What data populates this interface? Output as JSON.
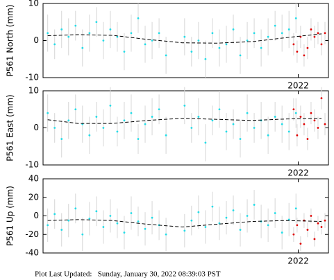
{
  "chart_data": [
    {
      "type": "scatter",
      "ylabel": "P561 North (mm)",
      "xlim": [
        2020.9,
        2022.13
      ],
      "xticks": [
        2022
      ],
      "ylim": [
        -10,
        10
      ],
      "yticks": [
        -10,
        0,
        10
      ],
      "series": [
        {
          "type": "scatter",
          "color": "#22dde8",
          "x": [
            2020.92,
            2020.95,
            2020.98,
            2021.01,
            2021.04,
            2021.07,
            2021.1,
            2021.13,
            2021.16,
            2021.19,
            2021.22,
            2021.25,
            2021.28,
            2021.31,
            2021.34,
            2021.37,
            2021.4,
            2021.43,
            2021.51,
            2021.54,
            2021.57,
            2021.6,
            2021.63,
            2021.66,
            2021.69,
            2021.72,
            2021.75,
            2021.78,
            2021.81,
            2021.84,
            2021.87,
            2021.9,
            2021.93,
            2021.96,
            2021.99
          ],
          "values": [
            2,
            -1,
            3,
            1,
            4,
            -2,
            2,
            5,
            0,
            3,
            1,
            -3,
            2,
            6,
            -1,
            0,
            2,
            -4,
            1,
            -3,
            0,
            -5,
            2,
            -2,
            -1,
            3,
            -4,
            0,
            2,
            -2,
            1,
            4,
            2,
            3,
            6
          ],
          "errors": [
            5,
            4,
            5,
            5,
            4,
            5,
            5,
            4,
            5,
            5,
            4,
            5,
            5,
            4,
            5,
            5,
            4,
            5,
            5,
            4,
            5,
            5,
            4,
            5,
            5,
            4,
            5,
            5,
            4,
            5,
            5,
            4,
            5,
            5,
            4
          ]
        },
        {
          "type": "scatter",
          "color": "#e00000",
          "x": [
            2021.98,
            2021.995,
            2022.01,
            2022.025,
            2022.04,
            2022.055,
            2022.07,
            2022.085,
            2022.1,
            2022.115
          ],
          "values": [
            -1,
            -3,
            1,
            -4,
            -2,
            3,
            1,
            2,
            -1,
            2
          ],
          "errors": [
            3,
            3,
            3,
            3,
            3,
            3,
            3,
            3,
            3,
            3
          ]
        },
        {
          "type": "line",
          "color": "#000000",
          "style": "dashed",
          "x": [
            2020.92,
            2021.05,
            2021.2,
            2021.35,
            2021.5,
            2021.65,
            2021.8,
            2021.95,
            2022.1
          ],
          "values": [
            1.3,
            1.6,
            1.4,
            0.3,
            -0.6,
            -0.7,
            -0.3,
            0.8,
            1.8
          ]
        }
      ]
    },
    {
      "type": "scatter",
      "ylabel": "P561 East (mm)",
      "xlim": [
        2020.9,
        2022.13
      ],
      "xticks": [
        2022
      ],
      "ylim": [
        -10,
        10
      ],
      "yticks": [
        -10,
        0,
        10
      ],
      "series": [
        {
          "type": "scatter",
          "color": "#22dde8",
          "x": [
            2020.92,
            2020.95,
            2020.98,
            2021.01,
            2021.04,
            2021.07,
            2021.1,
            2021.13,
            2021.16,
            2021.19,
            2021.22,
            2021.25,
            2021.28,
            2021.31,
            2021.34,
            2021.37,
            2021.4,
            2021.43,
            2021.51,
            2021.54,
            2021.57,
            2021.6,
            2021.63,
            2021.66,
            2021.69,
            2021.72,
            2021.75,
            2021.78,
            2021.81,
            2021.84,
            2021.87,
            2021.9,
            2021.93,
            2021.96,
            2021.99
          ],
          "values": [
            4,
            0,
            -3,
            2,
            5,
            1,
            -2,
            3,
            0,
            6,
            -1,
            2,
            4,
            -3,
            1,
            3,
            5,
            -2,
            6,
            0,
            3,
            -4,
            2,
            5,
            -1,
            1,
            -3,
            4,
            0,
            2,
            -2,
            3,
            1,
            -1,
            4
          ],
          "errors": [
            5,
            4,
            5,
            5,
            4,
            5,
            5,
            4,
            5,
            5,
            4,
            5,
            5,
            4,
            5,
            5,
            4,
            5,
            5,
            4,
            5,
            5,
            4,
            5,
            5,
            4,
            5,
            5,
            4,
            5,
            5,
            4,
            5,
            5,
            4
          ]
        },
        {
          "type": "scatter",
          "color": "#e00000",
          "x": [
            2021.98,
            2021.995,
            2022.01,
            2022.025,
            2022.04,
            2022.055,
            2022.07,
            2022.085,
            2022.1,
            2022.115
          ],
          "values": [
            5,
            -2,
            3,
            1,
            -3,
            4,
            2,
            0,
            8,
            1
          ],
          "errors": [
            3,
            3,
            3,
            3,
            3,
            3,
            3,
            3,
            3,
            3
          ]
        },
        {
          "type": "line",
          "color": "#000000",
          "style": "dashed",
          "x": [
            2020.92,
            2021.05,
            2021.2,
            2021.35,
            2021.5,
            2021.65,
            2021.8,
            2021.95,
            2022.1
          ],
          "values": [
            2.2,
            1.2,
            1.2,
            2.0,
            2.6,
            2.3,
            2.0,
            2.4,
            2.6
          ]
        }
      ]
    },
    {
      "type": "scatter",
      "ylabel": "P561 Up (mm)",
      "xlim": [
        2020.9,
        2022.13
      ],
      "xticks": [
        2022
      ],
      "ylim": [
        -40,
        40
      ],
      "yticks": [
        -40,
        -20,
        0,
        20,
        40
      ],
      "series": [
        {
          "type": "scatter",
          "color": "#22dde8",
          "x": [
            2020.92,
            2020.95,
            2020.98,
            2021.01,
            2021.04,
            2021.07,
            2021.1,
            2021.13,
            2021.16,
            2021.19,
            2021.22,
            2021.25,
            2021.28,
            2021.31,
            2021.34,
            2021.37,
            2021.4,
            2021.43,
            2021.51,
            2021.54,
            2021.57,
            2021.6,
            2021.63,
            2021.66,
            2021.69,
            2021.72,
            2021.75,
            2021.78,
            2021.81,
            2021.84,
            2021.87,
            2021.9,
            2021.93,
            2021.96,
            2021.99
          ],
          "values": [
            -10,
            2,
            -15,
            -5,
            8,
            -20,
            -3,
            5,
            -12,
            0,
            -8,
            -18,
            3,
            -6,
            -14,
            -2,
            -10,
            -20,
            -16,
            -5,
            4,
            -12,
            10,
            -8,
            -2,
            6,
            -15,
            0,
            12,
            -6,
            -10,
            3,
            -18,
            -4,
            8
          ],
          "errors": [
            18,
            16,
            18,
            18,
            16,
            18,
            18,
            16,
            18,
            18,
            16,
            18,
            18,
            16,
            18,
            18,
            16,
            18,
            18,
            16,
            18,
            18,
            16,
            18,
            18,
            16,
            18,
            18,
            16,
            18,
            18,
            16,
            18,
            18,
            16
          ]
        },
        {
          "type": "scatter",
          "color": "#e00000",
          "x": [
            2021.98,
            2021.995,
            2022.01,
            2022.025,
            2022.04,
            2022.055,
            2022.07,
            2022.085,
            2022.1,
            2022.115
          ],
          "values": [
            -20,
            -10,
            -30,
            -5,
            -15,
            0,
            -25,
            -8,
            -12,
            -5
          ],
          "errors": [
            8,
            8,
            8,
            8,
            8,
            8,
            8,
            8,
            8,
            8
          ]
        },
        {
          "type": "line",
          "color": "#000000",
          "style": "dashed",
          "x": [
            2020.92,
            2021.05,
            2021.2,
            2021.35,
            2021.5,
            2021.65,
            2021.8,
            2021.95,
            2022.1
          ],
          "values": [
            -5,
            -4,
            -5,
            -9,
            -12,
            -9,
            -6,
            -5,
            -6
          ]
        }
      ]
    }
  ],
  "footer": "Plot Last Updated:   Sunday, January 30, 2022 08:39:03 PST"
}
